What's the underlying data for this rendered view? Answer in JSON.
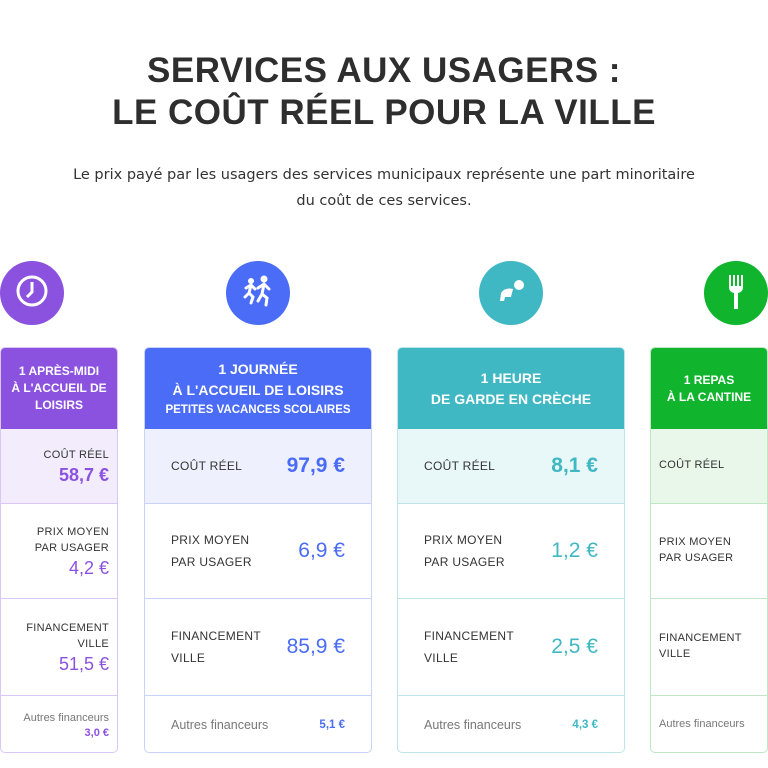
{
  "title": [
    "SERVICES AUX USAGERS :",
    "LE COÛT RÉEL POUR LA VILLE"
  ],
  "subtitle": [
    "Le prix payé par les usagers des services municipaux représente une part minoritaire",
    "du coût de ces services."
  ],
  "labels": {
    "cout": "COÛT RÉEL",
    "prix": [
      "PRIX MOYEN",
      "PAR USAGER"
    ],
    "fin": [
      "FINANCEMENT",
      "VILLE"
    ],
    "autres": "Autres financeurs"
  },
  "cards": [
    {
      "icon": "clock-icon",
      "color": "#8b52e0",
      "bg": "#f2ecfc",
      "border": "#d9c8f5",
      "head": [
        "1 APRÈS-MIDI",
        "À L'ACCUEIL DE LOISIRS"
      ],
      "small": "",
      "cout": "58,7 €",
      "prix": "4,2 €",
      "fin": "51,5 €",
      "autres": "3,0 €"
    },
    {
      "icon": "running-children-icon",
      "color": "#4a6cf6",
      "bg": "#eef1fd",
      "border": "#c9d3f7",
      "head": [
        "1 JOURNÉE",
        "À L'ACCUEIL DE LOISIRS"
      ],
      "small": "PETITES VACANCES SCOLAIRES",
      "cout": "97,9 €",
      "prix": "6,9 €",
      "fin": "85,9 €",
      "autres": "5,1 €"
    },
    {
      "icon": "crawling-baby-icon",
      "color": "#3fb8c4",
      "bg": "#e8f7f8",
      "border": "#bfe4e8",
      "head": [
        "1 HEURE",
        "DE GARDE EN CRÈCHE"
      ],
      "small": "",
      "cout": "8,1 €",
      "prix": "1,2 €",
      "fin": "2,5 €",
      "autres": "4,3 €"
    },
    {
      "icon": "fork-icon",
      "color": "#10b52d",
      "bg": "#e8f7ea",
      "border": "#bfe6c5",
      "head": [
        "1 REPAS",
        "À LA CANTINE"
      ],
      "small": "",
      "cout": "",
      "prix": "",
      "fin": "",
      "autres": ""
    }
  ]
}
